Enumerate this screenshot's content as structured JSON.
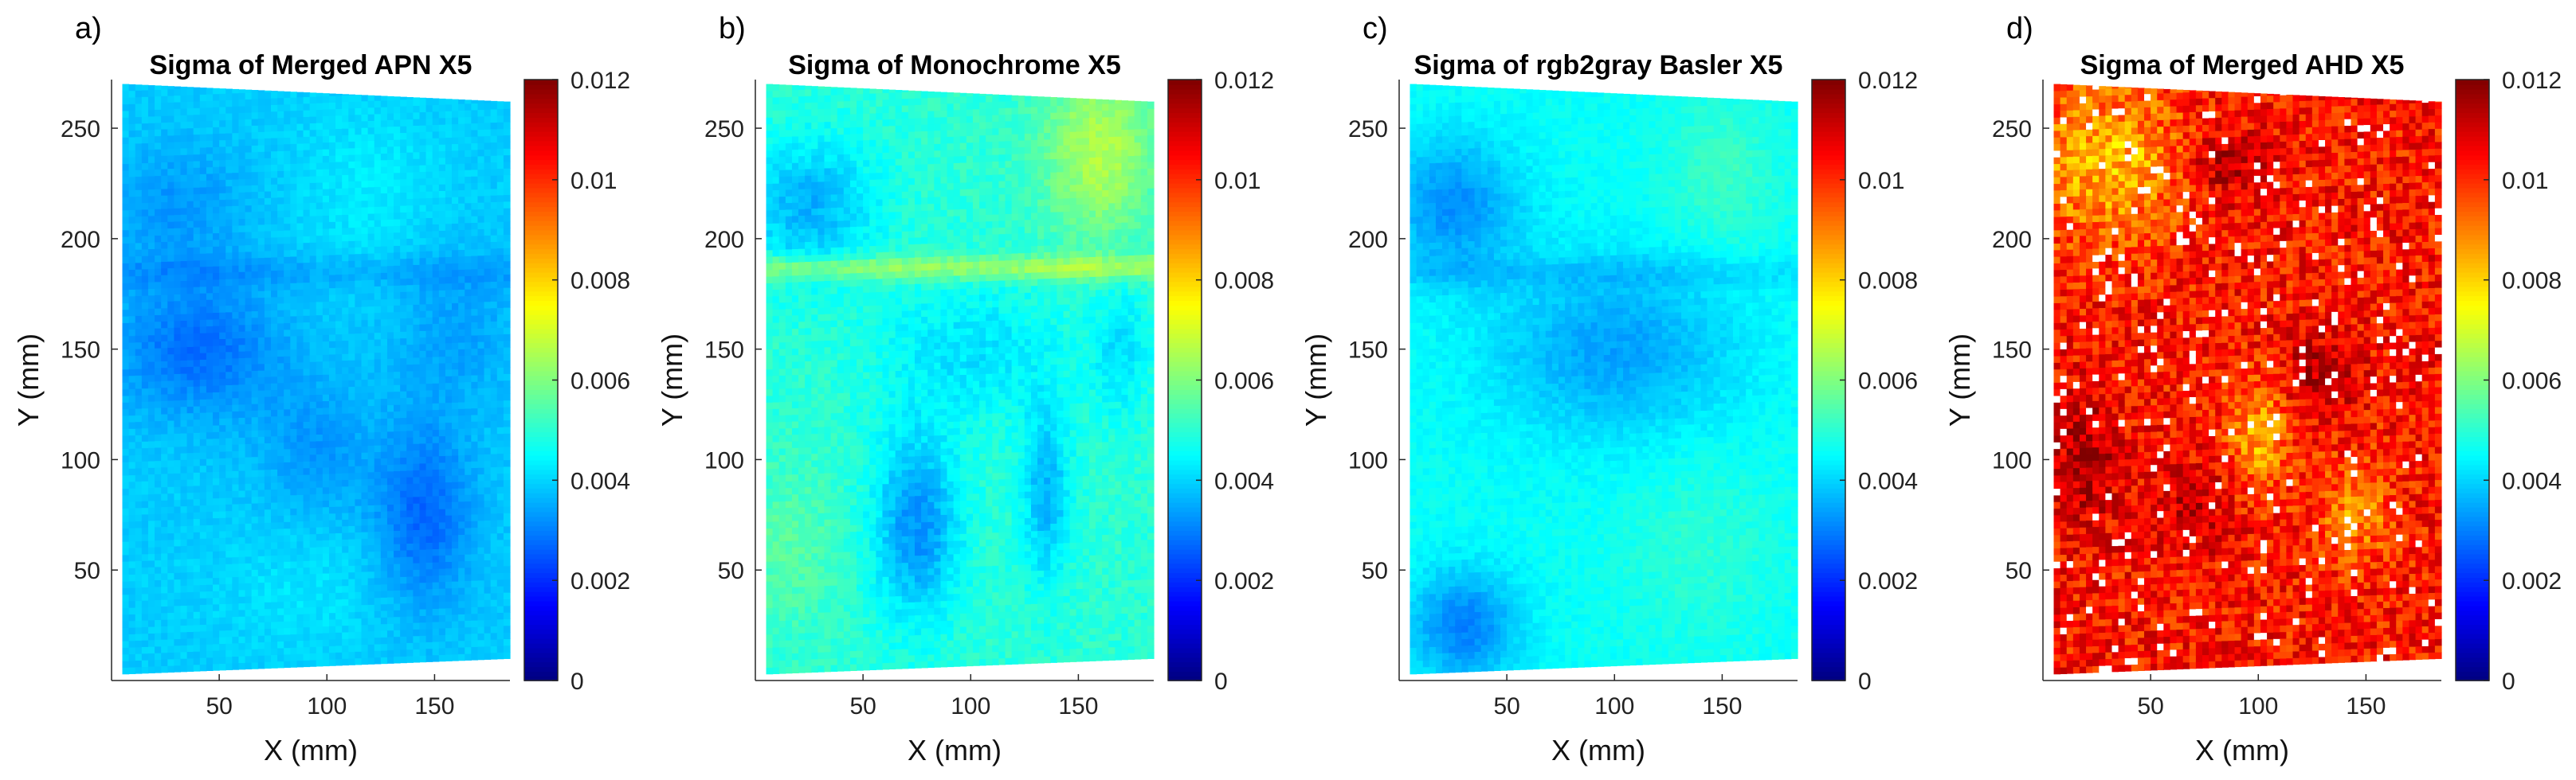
{
  "figure": {
    "colormap": "jet",
    "axis_color": "#262626",
    "missing_color": "#ffffff"
  },
  "chart_data": [
    {
      "type": "heatmap",
      "panel_label": "a)",
      "title": "Sigma of Merged APN X5",
      "xlabel": "X (mm)",
      "ylabel": "Y (mm)",
      "xlim": [
        0,
        185
      ],
      "ylim": [
        0,
        272
      ],
      "xticks": [
        50,
        100,
        150
      ],
      "yticks": [
        50,
        100,
        150,
        200,
        250
      ],
      "colorbar": {
        "range": [
          0,
          0.012
        ],
        "ticks": [
          "0",
          "0.002",
          "0.004",
          "0.006",
          "0.008",
          "0.01",
          "0.012"
        ]
      },
      "data_extent": {
        "x": [
          5,
          183
        ],
        "y_left": [
          3,
          270
        ],
        "y_right": [
          10,
          262
        ]
      },
      "base_value": 0.0039,
      "blobs": [
        {
          "x": 40,
          "y": 150,
          "sx": 28,
          "sy": 22,
          "v": -0.0011
        },
        {
          "x": 145,
          "y": 75,
          "sx": 16,
          "sy": 30,
          "v": -0.0012
        },
        {
          "x": 95,
          "y": 105,
          "sx": 18,
          "sy": 22,
          "v": -0.0006
        },
        {
          "x": 30,
          "y": 215,
          "sx": 25,
          "sy": 20,
          "v": -0.0006
        },
        {
          "x": 120,
          "y": 225,
          "sx": 25,
          "sy": 25,
          "v": 0.0004
        },
        {
          "x": 90,
          "y": 40,
          "sx": 30,
          "sy": 20,
          "v": 0.0003
        },
        {
          "x": 160,
          "y": 160,
          "sx": 20,
          "sy": 25,
          "v": -0.0005
        }
      ],
      "bands": [
        {
          "y": 185,
          "w": 5,
          "v": -0.0004
        }
      ],
      "noise": 0.0002,
      "speckles": 0
    },
    {
      "type": "heatmap",
      "panel_label": "b)",
      "title": "Sigma of Monochrome X5",
      "xlabel": "X (mm)",
      "ylabel": "Y (mm)",
      "xlim": [
        0,
        185
      ],
      "ylim": [
        0,
        272
      ],
      "xticks": [
        50,
        100,
        150
      ],
      "yticks": [
        50,
        100,
        150,
        200,
        250
      ],
      "colorbar": {
        "range": [
          0,
          0.012
        ],
        "ticks": [
          "0",
          "0.002",
          "0.004",
          "0.006",
          "0.008",
          "0.01",
          "0.012"
        ]
      },
      "data_extent": {
        "x": [
          5,
          183
        ],
        "y_left": [
          3,
          270
        ],
        "y_right": [
          10,
          262
        ]
      },
      "base_value": 0.005,
      "blobs": [
        {
          "x": 75,
          "y": 70,
          "sx": 14,
          "sy": 30,
          "v": -0.0018
        },
        {
          "x": 135,
          "y": 85,
          "sx": 8,
          "sy": 28,
          "v": -0.0014
        },
        {
          "x": 25,
          "y": 215,
          "sx": 22,
          "sy": 22,
          "v": -0.0014
        },
        {
          "x": 100,
          "y": 150,
          "sx": 30,
          "sy": 22,
          "v": -0.0008
        },
        {
          "x": 160,
          "y": 240,
          "sx": 18,
          "sy": 28,
          "v": 0.0016
        },
        {
          "x": 170,
          "y": 150,
          "sx": 10,
          "sy": 22,
          "v": -0.0008
        },
        {
          "x": 15,
          "y": 60,
          "sx": 18,
          "sy": 25,
          "v": 0.0005
        }
      ],
      "bands": [
        {
          "y": 187,
          "w": 4,
          "v": 0.0014
        }
      ],
      "noise": 0.0003,
      "speckles": 0
    },
    {
      "type": "heatmap",
      "panel_label": "c)",
      "title": "Sigma of rgb2gray Basler X5",
      "xlabel": "X (mm)",
      "ylabel": "Y (mm)",
      "xlim": [
        0,
        185
      ],
      "ylim": [
        0,
        272
      ],
      "xticks": [
        50,
        100,
        150
      ],
      "yticks": [
        50,
        100,
        150,
        200,
        250
      ],
      "colorbar": {
        "range": [
          0,
          0.012
        ],
        "ticks": [
          "0",
          "0.002",
          "0.004",
          "0.006",
          "0.008",
          "0.01",
          "0.012"
        ]
      },
      "data_extent": {
        "x": [
          5,
          183
        ],
        "y_left": [
          3,
          270
        ],
        "y_right": [
          10,
          262
        ]
      },
      "base_value": 0.0046,
      "blobs": [
        {
          "x": 30,
          "y": 25,
          "sx": 18,
          "sy": 18,
          "v": -0.0016
        },
        {
          "x": 25,
          "y": 215,
          "sx": 22,
          "sy": 22,
          "v": -0.0014
        },
        {
          "x": 100,
          "y": 150,
          "sx": 40,
          "sy": 28,
          "v": -0.0012
        },
        {
          "x": 150,
          "y": 230,
          "sx": 18,
          "sy": 25,
          "v": 0.0006
        },
        {
          "x": 140,
          "y": 60,
          "sx": 25,
          "sy": 30,
          "v": 0.0004
        }
      ],
      "bands": [
        {
          "y": 185,
          "w": 5,
          "v": -0.0004
        }
      ],
      "noise": 0.0002,
      "speckles": 0
    },
    {
      "type": "heatmap",
      "panel_label": "d)",
      "title": "Sigma of Merged AHD X5",
      "xlabel": "X (mm)",
      "ylabel": "Y (mm)",
      "xlim": [
        0,
        185
      ],
      "ylim": [
        0,
        272
      ],
      "xticks": [
        50,
        100,
        150
      ],
      "yticks": [
        50,
        100,
        150,
        200,
        250
      ],
      "colorbar": {
        "range": [
          0,
          0.012
        ],
        "ticks": [
          "0",
          "0.002",
          "0.004",
          "0.006",
          "0.008",
          "0.01",
          "0.012"
        ]
      },
      "data_extent": {
        "x": [
          5,
          183
        ],
        "y_left": [
          3,
          270
        ],
        "y_right": [
          10,
          262
        ]
      },
      "base_value": 0.0103,
      "blobs": [
        {
          "x": 30,
          "y": 235,
          "sx": 25,
          "sy": 25,
          "v": -0.002
        },
        {
          "x": 100,
          "y": 110,
          "sx": 10,
          "sy": 18,
          "v": -0.0018
        },
        {
          "x": 145,
          "y": 75,
          "sx": 12,
          "sy": 16,
          "v": -0.0014
        },
        {
          "x": 85,
          "y": 235,
          "sx": 12,
          "sy": 12,
          "v": 0.0012
        },
        {
          "x": 130,
          "y": 140,
          "sx": 12,
          "sy": 12,
          "v": 0.0012
        },
        {
          "x": 70,
          "y": 80,
          "sx": 15,
          "sy": 15,
          "v": 0.0008
        },
        {
          "x": 20,
          "y": 100,
          "sx": 10,
          "sy": 22,
          "v": 0.0012
        }
      ],
      "bands": [],
      "noise": 0.001,
      "speckles": 0.045
    }
  ]
}
